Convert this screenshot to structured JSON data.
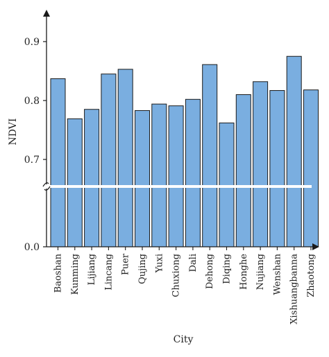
{
  "chart_data": {
    "type": "bar",
    "xlabel": "City",
    "ylabel": "NDVI",
    "categories": [
      "Baoshan",
      "Kunming",
      "Lijiang",
      "Lincang",
      "Puer",
      "Qujing",
      "Yuxi",
      "Chuxiong",
      "Dali",
      "Dehong",
      "Diqing",
      "Honghe",
      "Nujiang",
      "Wenshan",
      "Xishuangbanna",
      "Zhaotong"
    ],
    "values": [
      0.837,
      0.769,
      0.785,
      0.845,
      0.853,
      0.783,
      0.794,
      0.791,
      0.802,
      0.861,
      0.762,
      0.81,
      0.832,
      0.817,
      0.875,
      0.818
    ],
    "yticks": [
      0.0,
      0.7,
      0.8,
      0.9
    ],
    "ytick_labels": [
      "0.0",
      "0.7",
      "0.8",
      "0.9"
    ],
    "axis_break": [
      0.0,
      0.66
    ],
    "upper_ylim": [
      0.66,
      0.95
    ],
    "bar_color": "#7aaee0",
    "bar_edge_color": "#1a1a1a",
    "axis_color": "#1a1a1a"
  }
}
